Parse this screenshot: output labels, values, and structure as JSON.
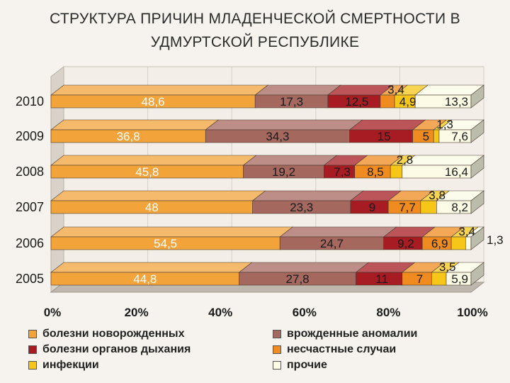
{
  "title_line1": "СТРУКТУРА ПРИЧИН МЛАДЕНЧЕСКОЙ СМЕРТНОСТИ В",
  "title_line2": "УДМУРТСКОЙ РЕСПУБЛИКЕ",
  "chart_data": {
    "type": "bar",
    "orientation": "horizontal",
    "stacked": "percent",
    "categories": [
      "2010",
      "2009",
      "2008",
      "2007",
      "2006",
      "2005"
    ],
    "series": [
      {
        "name": "болезни новорожденных",
        "color": "#f2a33a",
        "label_color": "#ffffff",
        "values": [
          "48,6",
          "36,8",
          "45,8",
          "48",
          "54,5",
          "44,8"
        ]
      },
      {
        "name": "врожденные аномалии",
        "color": "#a5685f",
        "label_color": "#1a1a1a",
        "values": [
          "17,3",
          "34,3",
          "19,2",
          "23,3",
          "24,7",
          "27,8"
        ]
      },
      {
        "name": "болезни органов дыхания",
        "color": "#a61c22",
        "label_color": "#1a1a1a",
        "values": [
          "12,5",
          "15",
          "7,3",
          "9",
          "9,2",
          "11"
        ]
      },
      {
        "name": "несчастные случаи",
        "color": "#ef8b1f",
        "label_color": "#1a1a1a",
        "values": [
          "3,4",
          "5",
          "8,5",
          "7,7",
          "6,9",
          "7"
        ]
      },
      {
        "name": "инфекции",
        "color": "#f6c619",
        "label_color": "#1a1a1a",
        "values": [
          "4,9",
          "1,3",
          "2,8",
          "3,8",
          "3,4",
          "3,5"
        ]
      },
      {
        "name": "прочие",
        "color": "#fbfbe6",
        "label_color": "#1a1a1a",
        "values": [
          "13,3",
          "7,6",
          "16,4",
          "8,2",
          "1,3",
          "5,9"
        ]
      }
    ],
    "x_ticks": [
      "0%",
      "20%",
      "40%",
      "60%",
      "80%",
      "100%"
    ],
    "xlim": [
      0,
      100
    ],
    "legend_position": "bottom"
  }
}
